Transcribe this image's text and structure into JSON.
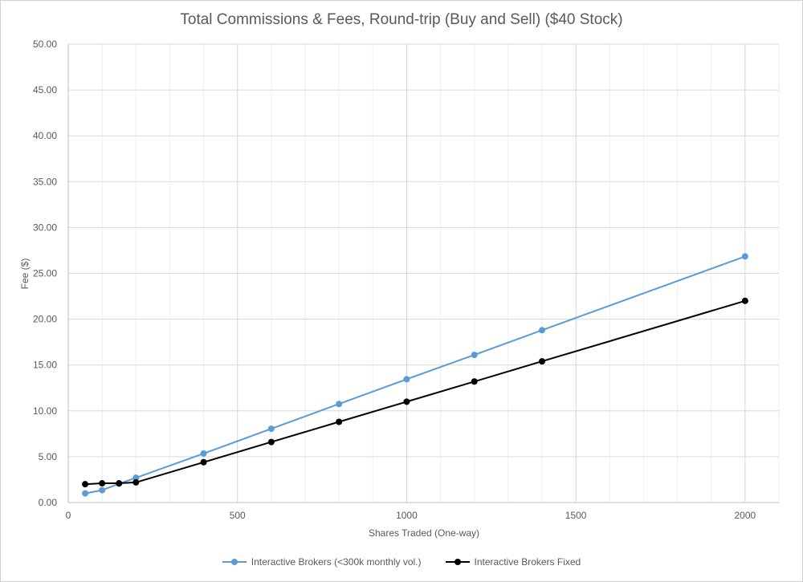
{
  "chart_data": {
    "type": "line",
    "title": "Total Commissions & Fees, Round-trip (Buy and Sell) ($40 Stock)",
    "xlabel": "Shares Traded (One-way)",
    "ylabel": "Fee ($)",
    "xlim": [
      0,
      2100
    ],
    "ylim": [
      0,
      50
    ],
    "x_ticks": [
      0,
      500,
      1000,
      1500,
      2000
    ],
    "x_tick_labels": [
      "0",
      "500",
      "1000",
      "1500",
      "2000"
    ],
    "y_ticks": [
      0,
      5,
      10,
      15,
      20,
      25,
      30,
      35,
      40,
      45,
      50
    ],
    "y_tick_labels": [
      "0.00",
      "5.00",
      "10.00",
      "15.00",
      "20.00",
      "25.00",
      "30.00",
      "35.00",
      "40.00",
      "45.00",
      "50.00"
    ],
    "grid": true,
    "legend_position": "bottom",
    "series": [
      {
        "name": "Interactive Brokers (<300k monthly vol.)",
        "color": "#5b9bd5",
        "x": [
          50,
          100,
          150,
          200,
          400,
          600,
          800,
          1000,
          1200,
          1400,
          2000
        ],
        "y": [
          1.0,
          1.35,
          2.05,
          2.7,
          5.35,
          8.05,
          10.75,
          13.45,
          16.1,
          18.8,
          26.85
        ]
      },
      {
        "name": "Interactive Brokers Fixed",
        "color": "#000000",
        "x": [
          50,
          100,
          150,
          200,
          400,
          600,
          800,
          1000,
          1200,
          1400,
          2000
        ],
        "y": [
          2.0,
          2.1,
          2.1,
          2.2,
          4.4,
          6.6,
          8.8,
          11.0,
          13.2,
          15.4,
          22.0
        ]
      }
    ]
  }
}
